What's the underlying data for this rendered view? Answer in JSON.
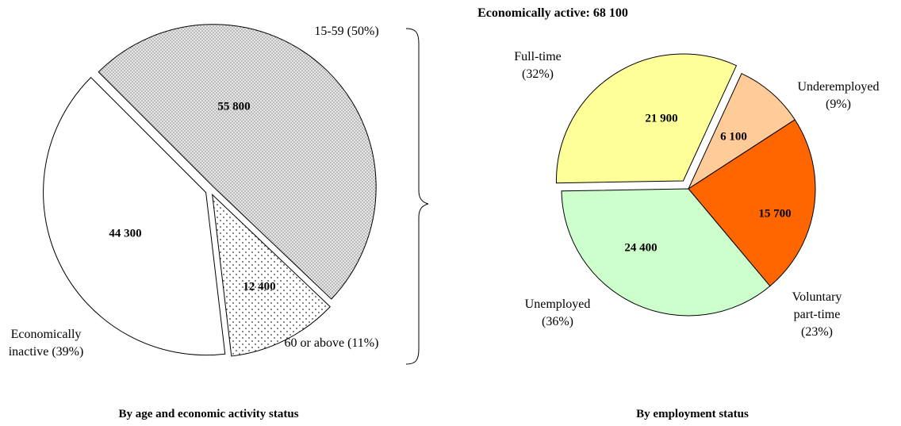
{
  "chart_data": [
    {
      "type": "pie",
      "title": "By age and economic activity status",
      "categories": [
        "15-59 (50%)",
        "60 or above (11%)",
        "Economically inactive (39%)"
      ],
      "values": [
        55800,
        12400,
        44300
      ],
      "value_labels": [
        "55 800",
        "12 400",
        "44 300"
      ],
      "colors": [
        "#e6e6e6",
        "#ffffff",
        "#ffffff"
      ]
    },
    {
      "type": "pie",
      "title": "By employment status",
      "subtitle": "Economically active: 68 100",
      "categories": [
        "Full-time (32%)",
        "Underemployed (9%)",
        "Voluntary part-time (23%)",
        "Unemployed (36%)"
      ],
      "values": [
        21900,
        6100,
        15700,
        24400
      ],
      "value_labels": [
        "21 900",
        "6 100",
        "15 700",
        "24 400"
      ],
      "colors": [
        "#ffff99",
        "#ffcc99",
        "#ff6600",
        "#ccffcc"
      ]
    }
  ]
}
